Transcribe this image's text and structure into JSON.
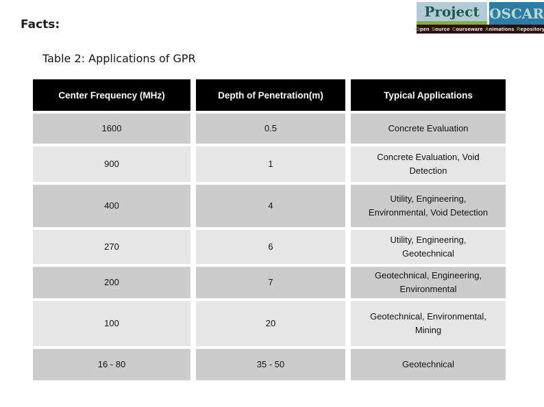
{
  "slide": {
    "heading": "Facts:",
    "subtitle": "Table 2: Applications of GPR"
  },
  "logo": {
    "project_text": "Project",
    "oscar_text": "OSCAR",
    "tagline_words": [
      {
        "initial": "O",
        "rest": "pen"
      },
      {
        "initial": "S",
        "rest": "ource"
      },
      {
        "initial": "C",
        "rest": "ourseware"
      },
      {
        "initial": "A",
        "rest": "nimations"
      },
      {
        "initial": "R",
        "rest": "epository"
      }
    ],
    "colors": {
      "project_bg": "#b3cbd8",
      "project_text": "#1a5c4a",
      "oscar_bg": "#2d7ca8",
      "oscar_text": "#bcd9cd",
      "green_strip": "#7fb043",
      "tagline_bg": "#2e0d0a",
      "tagline_text": "#ffffff",
      "tagline_initial": "#7cb342"
    }
  },
  "table": {
    "columns": [
      "Center Frequency (MHz)",
      "Depth of Penetration(m)",
      "Typical Applications"
    ],
    "rows": [
      {
        "frequency": "1600",
        "depth": "0.5",
        "applications": "Concrete Evaluation"
      },
      {
        "frequency": "900",
        "depth": "1",
        "applications": "Concrete Evaluation, Void Detection"
      },
      {
        "frequency": "400",
        "depth": "4",
        "applications": "Utility, Engineering, Environmental, Void Detection"
      },
      {
        "frequency": "270",
        "depth": "6",
        "applications": "Utility, Engineering, Geotechnical"
      },
      {
        "frequency": "200",
        "depth": "7",
        "applications": "Geotechnical, Engineering, Environmental"
      },
      {
        "frequency": "100",
        "depth": "20",
        "applications": "Geotechnical, Environmental, Mining"
      },
      {
        "frequency": "16 - 80",
        "depth": "35 - 50",
        "applications": "Geotechnical"
      }
    ],
    "colors": {
      "header_bg": "#000000",
      "header_text": "#ffffff",
      "row_dark": "#cccccc",
      "row_light": "#e6e6e6"
    }
  }
}
